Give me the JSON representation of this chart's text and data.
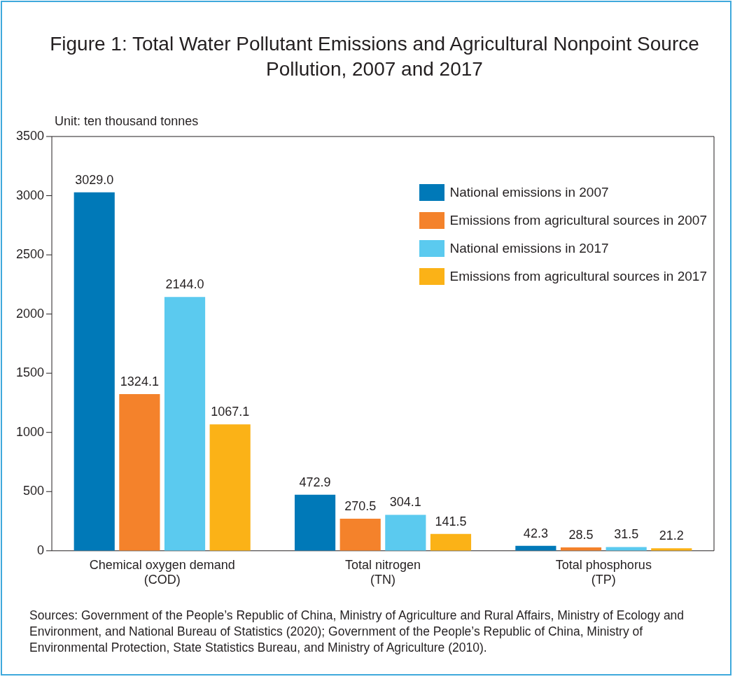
{
  "chart_data": {
    "type": "bar",
    "title": "Figure 1: Total Water Pollutant Emissions and Agricultural Nonpoint Source Pollution, 2007 and 2017",
    "ylabel": "Unit: ten thousand tonnes",
    "categories": [
      "Chemical oxygen demand (COD)",
      "Total nitrogen (TN)",
      "Total phosphorus (TP)"
    ],
    "series": [
      {
        "name": "National emissions in 2007",
        "color": "#0079b8",
        "values": [
          3029.0,
          472.9,
          42.3
        ],
        "value_labels": [
          "3029.0",
          "472.9",
          "42.3"
        ]
      },
      {
        "name": "Emissions from agricultural sources in 2007",
        "color": "#f4822b",
        "values": [
          1324.1,
          270.5,
          28.5
        ],
        "value_labels": [
          "1324.1",
          "270.5",
          "28.5"
        ]
      },
      {
        "name": "National emissions in 2017",
        "color": "#5bcaef",
        "values": [
          2144.0,
          304.1,
          31.5
        ],
        "value_labels": [
          "2144.0",
          "304.1",
          "31.5"
        ]
      },
      {
        "name": "Emissions from agricultural sources in 2017",
        "color": "#fbb217",
        "values": [
          1067.1,
          141.5,
          21.2
        ],
        "value_labels": [
          "1067.1",
          "141.5",
          "21.2"
        ]
      }
    ],
    "ylim": [
      0,
      3500
    ],
    "yticks": [
      0,
      500,
      1000,
      1500,
      2000,
      2500,
      3000,
      3500
    ],
    "grid": false,
    "legend": "top right",
    "annotations": [
      "Sources: Government of the People’s Republic of China, Ministry of Agriculture and Rural Affairs, Ministry of Ecology and Environment, and National Bureau of Statistics (2020); Government of the People’s Republic of China, Ministry of Environmental Protection, State Statistics Bureau, and Ministry of Agriculture (2010)."
    ]
  }
}
